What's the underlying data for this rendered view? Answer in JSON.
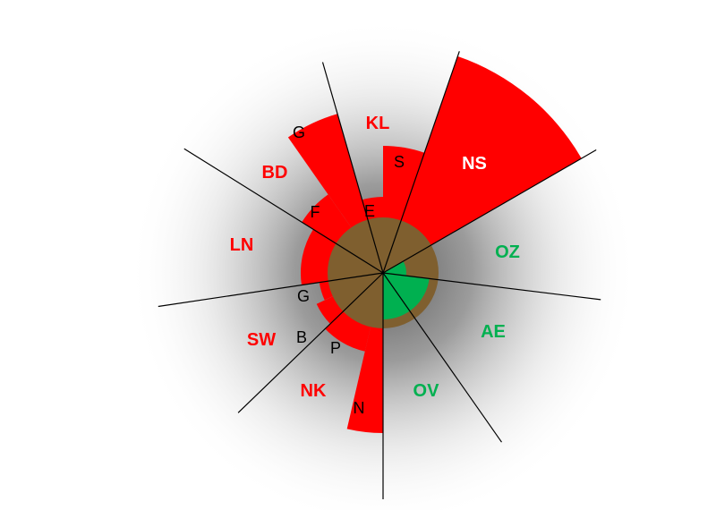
{
  "colors": {
    "red": "#ff0000",
    "green": "#00b050",
    "core": "#7f5f2f",
    "line": "#000000",
    "label_dark": "#000000",
    "label_light": "#ffffff"
  },
  "sector_labels": [
    {
      "id": "kl",
      "text": "KL",
      "color": "red"
    },
    {
      "id": "ns",
      "text": "NS",
      "color": "label_light"
    },
    {
      "id": "oz",
      "text": "OZ",
      "color": "green"
    },
    {
      "id": "ae",
      "text": "AE",
      "color": "green"
    },
    {
      "id": "ov",
      "text": "OV",
      "color": "green"
    },
    {
      "id": "nk",
      "text": "NK",
      "color": "red"
    },
    {
      "id": "sw",
      "text": "SW",
      "color": "red"
    },
    {
      "id": "ln",
      "text": "LN",
      "color": "red"
    },
    {
      "id": "bd",
      "text": "BD",
      "color": "red"
    }
  ],
  "slice_labels": [
    {
      "id": "kl-e",
      "text": "E"
    },
    {
      "id": "kl-s",
      "text": "S"
    },
    {
      "id": "bd-g",
      "text": "G"
    },
    {
      "id": "bd-f",
      "text": "F"
    },
    {
      "id": "sw-g",
      "text": "G"
    },
    {
      "id": "sw-b",
      "text": "B"
    },
    {
      "id": "nk-p",
      "text": "P"
    },
    {
      "id": "nk-n",
      "text": "N"
    }
  ]
}
